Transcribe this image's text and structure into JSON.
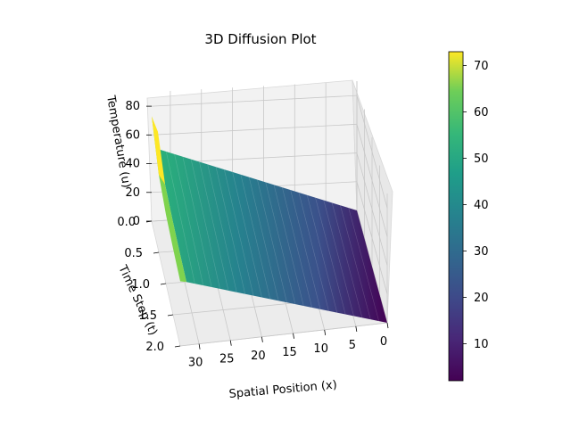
{
  "chart_data": {
    "type": "surface",
    "title": "3D Diffusion Plot",
    "xlabel": "Spatial Position (x)",
    "ylabel": "Time Step (t)",
    "zlabel": "Temperature (u)",
    "x_ticks": [
      "0",
      "5",
      "10",
      "15",
      "20",
      "25",
      "30"
    ],
    "t_ticks": [
      "0.0",
      "0.5",
      "1.0",
      "1.5",
      "2.0"
    ],
    "z_ticks": [
      "0",
      "20",
      "40",
      "60",
      "80"
    ],
    "xlim": [
      0,
      33
    ],
    "tlim": [
      0.0,
      2.0
    ],
    "zlim": [
      0,
      90
    ],
    "colormap": "viridis",
    "colorbar": {
      "ticks": [
        "10",
        "20",
        "30",
        "40",
        "50",
        "60",
        "70"
      ],
      "range": [
        2,
        73
      ]
    },
    "surface": {
      "x_samples": [
        0,
        32,
        33
      ],
      "t_samples": [
        0.0,
        0.5,
        1.0,
        1.5,
        2.0
      ],
      "note_values_at_x0": 0,
      "temperature_at_x33": [
        73,
        54,
        48,
        46,
        45
      ],
      "temperature_at_x32": [
        50,
        47,
        45,
        44,
        44
      ]
    }
  }
}
